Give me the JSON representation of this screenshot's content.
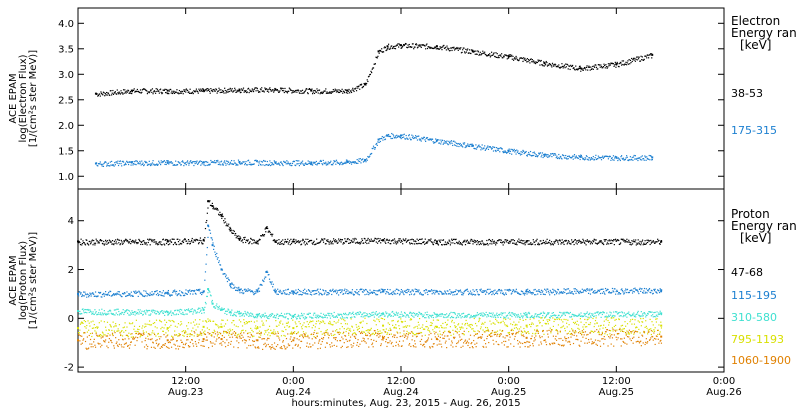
{
  "chart_data": [
    {
      "type": "scatter",
      "panel": "electron",
      "ylabel_lines": [
        "ACE EPAM",
        "log(Electron Flux)",
        "[1/(cm²s ster MeV)]"
      ],
      "ylim": [
        0.75,
        4.3
      ],
      "yticks": [
        "1.0",
        "1.5",
        "2.0",
        "2.5",
        "3.0",
        "3.5",
        "4.0"
      ],
      "ytick_values": [
        1.0,
        1.5,
        2.0,
        2.5,
        3.0,
        3.5,
        4.0
      ],
      "legend_title_lines": [
        "Electron",
        "Energy ran"
      ],
      "legend_unit": "[keV]",
      "series": [
        {
          "name": "38-53",
          "color": "#000000",
          "x_hours": [
            2,
            6,
            10,
            14,
            18,
            22,
            26,
            30,
            32,
            33.5,
            34.5,
            36,
            40,
            44,
            48,
            52,
            56,
            60,
            64
          ],
          "values": [
            2.62,
            2.68,
            2.68,
            2.68,
            2.7,
            2.7,
            2.68,
            2.68,
            2.8,
            3.45,
            3.55,
            3.57,
            3.55,
            3.45,
            3.35,
            3.22,
            3.12,
            3.2,
            3.38
          ]
        },
        {
          "name": "175-315",
          "color": "#1b7fd0",
          "x_hours": [
            2,
            6,
            10,
            14,
            18,
            22,
            26,
            30,
            32,
            33.5,
            34.5,
            36,
            40,
            44,
            48,
            52,
            56,
            60,
            64
          ],
          "values": [
            1.25,
            1.27,
            1.27,
            1.27,
            1.28,
            1.27,
            1.27,
            1.28,
            1.32,
            1.72,
            1.8,
            1.8,
            1.7,
            1.6,
            1.5,
            1.42,
            1.38,
            1.37,
            1.37
          ]
        }
      ]
    },
    {
      "type": "scatter",
      "panel": "proton",
      "ylabel_lines": [
        "ACE EPAM",
        "log(Proton Flux)",
        "[1/(cm²s ster MeV)]"
      ],
      "ylim": [
        -2.2,
        5.3
      ],
      "yticks": [
        "-2",
        "0",
        "2",
        "4"
      ],
      "ytick_values": [
        -2,
        0,
        2,
        4
      ],
      "legend_title_lines": [
        "Proton",
        "Energy ran"
      ],
      "legend_unit": "[keV]",
      "series": [
        {
          "name": "47-68",
          "color": "#000000",
          "x_hours": [
            0,
            10,
            14,
            14.5,
            15,
            16,
            17,
            18,
            20,
            21,
            22,
            24,
            34,
            40,
            50,
            65
          ],
          "values": [
            3.15,
            3.15,
            3.2,
            4.8,
            4.6,
            4.2,
            3.6,
            3.25,
            3.15,
            3.7,
            3.15,
            3.15,
            3.2,
            3.15,
            3.15,
            3.15
          ]
        },
        {
          "name": "115-195",
          "color": "#1b7fd0",
          "x_hours": [
            0,
            10,
            14,
            14.5,
            15,
            16,
            17,
            18,
            20,
            21,
            22,
            24,
            34,
            40,
            50,
            65
          ],
          "values": [
            1.0,
            1.05,
            1.1,
            3.8,
            3.0,
            2.0,
            1.4,
            1.15,
            1.1,
            1.9,
            1.1,
            1.1,
            1.1,
            1.1,
            1.1,
            1.15
          ]
        },
        {
          "name": "310-580",
          "color": "#3fe0d0",
          "x_hours": [
            0,
            10,
            14,
            14.5,
            15,
            16,
            17,
            18,
            20,
            24,
            34,
            40,
            50,
            65
          ],
          "values": [
            0.3,
            0.25,
            0.35,
            1.2,
            0.6,
            0.35,
            0.25,
            0.2,
            0.15,
            0.1,
            0.2,
            0.15,
            0.15,
            0.2
          ]
        },
        {
          "name": "795-1193",
          "color": "#d8e000",
          "x_hours": [
            0,
            10,
            14,
            16,
            20,
            24,
            34,
            40,
            50,
            65
          ],
          "values": [
            -0.4,
            -0.4,
            -0.35,
            -0.35,
            -0.4,
            -0.4,
            -0.3,
            -0.35,
            -0.3,
            -0.3
          ]
        },
        {
          "name": "1060-1900",
          "color": "#e08000",
          "x_hours": [
            0,
            10,
            14,
            16,
            20,
            24,
            34,
            40,
            50,
            65
          ],
          "values": [
            -0.9,
            -0.9,
            -0.85,
            -0.85,
            -0.9,
            -0.9,
            -0.8,
            -0.85,
            -0.8,
            -0.75
          ]
        }
      ]
    }
  ],
  "x_axis": {
    "xlim_hours": [
      0,
      72
    ],
    "ticks": [
      {
        "hour": 12,
        "time": "12:00",
        "date": "Aug.23"
      },
      {
        "hour": 24,
        "time": "0:00",
        "date": "Aug.24"
      },
      {
        "hour": 36,
        "time": "12:00",
        "date": "Aug.24"
      },
      {
        "hour": 48,
        "time": "0:00",
        "date": "Aug.25"
      },
      {
        "hour": 60,
        "time": "12:00",
        "date": "Aug.25"
      },
      {
        "hour": 72,
        "time": "0:00",
        "date": "Aug.26"
      }
    ],
    "label": "hours:minutes, Aug. 23, 2015 - Aug. 26, 2015"
  }
}
